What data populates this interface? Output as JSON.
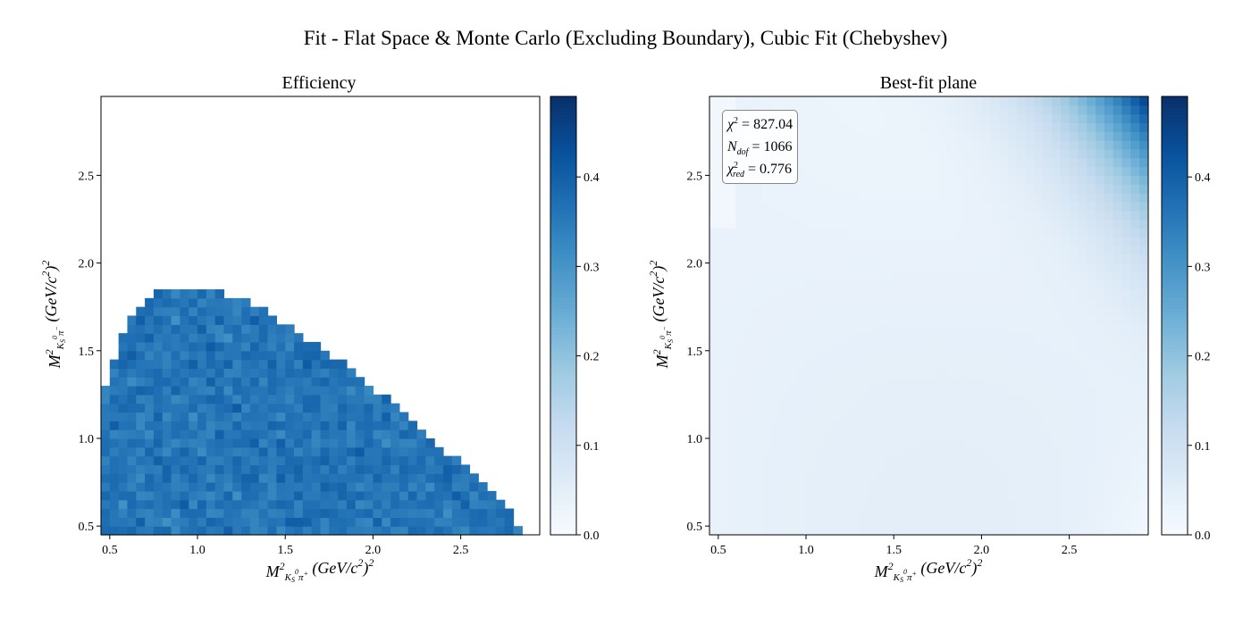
{
  "suptitle": "Fit - Flat Space & Monte Carlo (Excluding Boundary), Cubic Fit (Chebyshev)",
  "chart_data": [
    {
      "type": "heatmap",
      "title": "Efficiency",
      "xlabel": "M²_{K_S^0π^+} (GeV/c²)²",
      "ylabel": "M²_{K_S^0π^-} (GeV/c²)²",
      "xlim": [
        0.45,
        2.95
      ],
      "ylim": [
        0.45,
        2.95
      ],
      "x_ticks": [
        0.5,
        1.0,
        1.5,
        2.0,
        2.5
      ],
      "x_tick_labels": [
        "0.5",
        "1.0",
        "1.5",
        "2.0",
        "2.5"
      ],
      "y_ticks": [
        0.5,
        1.0,
        1.5,
        2.0,
        2.5
      ],
      "y_tick_labels": [
        "0.5",
        "1.0",
        "1.5",
        "2.0",
        "2.5"
      ],
      "bins": 50,
      "mean_value": 0.36,
      "value_spread": 0.04,
      "region": "Dalitz-plot boundary of D0 → K_S0 π+ π−; bins outside kinematic region are empty",
      "colormap": "Blues",
      "colorbar": {
        "min": 0.0,
        "max": 0.49,
        "ticks": [
          0.0,
          0.1,
          0.2,
          0.3,
          0.4
        ],
        "tick_labels": [
          "0.0",
          "0.1",
          "0.2",
          "0.3",
          "0.4"
        ]
      }
    },
    {
      "type": "heatmap",
      "title": "Best-fit plane",
      "xlabel": "M²_{K_S^0π^+} (GeV/c²)²",
      "ylabel": "M²_{K_S^0π^-} (GeV/c²)²",
      "xlim": [
        0.45,
        2.95
      ],
      "ylim": [
        0.45,
        2.95
      ],
      "x_ticks": [
        0.5,
        1.0,
        1.5,
        2.0,
        2.5
      ],
      "x_tick_labels": [
        "0.5",
        "1.0",
        "1.5",
        "2.0",
        "2.5"
      ],
      "y_ticks": [
        0.5,
        1.0,
        1.5,
        2.0,
        2.5
      ],
      "y_tick_labels": [
        "0.5",
        "1.0",
        "1.5",
        "2.0",
        "2.5"
      ],
      "bins": 50,
      "surface": "cubic Chebyshev polynomial; ≈0.02–0.06 across most of the plane, rising to ≈0.48 in the top-right corner (x≈2.9, y≈2.9)",
      "colormap": "Blues",
      "colorbar": {
        "min": 0.0,
        "max": 0.49,
        "ticks": [
          0.0,
          0.1,
          0.2,
          0.3,
          0.4
        ],
        "tick_labels": [
          "0.0",
          "0.1",
          "0.2",
          "0.3",
          "0.4"
        ]
      },
      "stats": {
        "chi2": "827.04",
        "ndof": "1066",
        "chi2_red": "0.776"
      }
    }
  ],
  "colors": {
    "cmap_low": "#f7fbff",
    "cmap_high": "#08306b"
  }
}
